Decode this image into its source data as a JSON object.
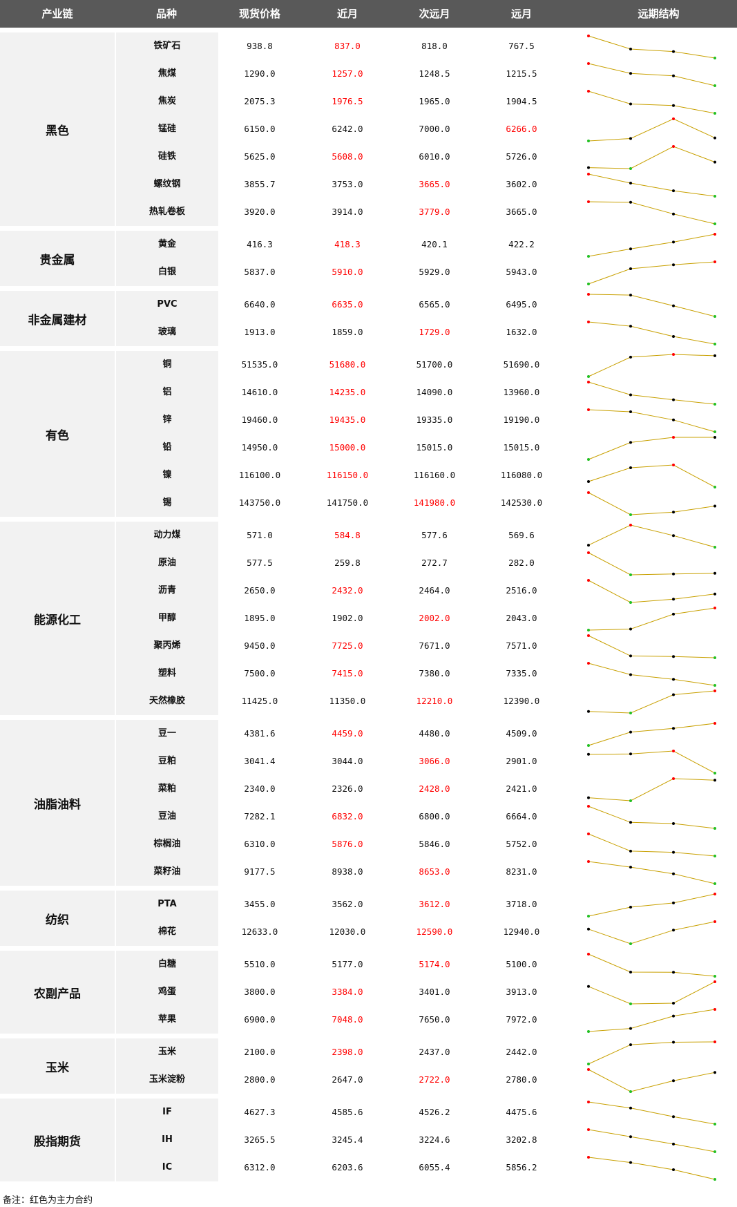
{
  "header": [
    "产业链",
    "品种",
    "现货价格",
    "近月",
    "次远月",
    "远月",
    "远期结构"
  ],
  "groups": [
    {
      "name": "黑色",
      "rows": [
        {
          "name": "铁矿石",
          "spot": "938.8",
          "near": "837.0",
          "next": "818.0",
          "far": "767.5",
          "main": 1
        },
        {
          "name": "焦煤",
          "spot": "1290.0",
          "near": "1257.0",
          "next": "1248.5",
          "far": "1215.5",
          "main": 1
        },
        {
          "name": "焦炭",
          "spot": "2075.3",
          "near": "1976.5",
          "next": "1965.0",
          "far": "1904.5",
          "main": 1
        },
        {
          "name": "锰硅",
          "spot": "6150.0",
          "near": "6242.0",
          "next": "7000.0",
          "far": "6266.0",
          "main": 3
        },
        {
          "name": "硅铁",
          "spot": "5625.0",
          "near": "5608.0",
          "next": "6010.0",
          "far": "5726.0",
          "main": 1
        },
        {
          "name": "螺纹钢",
          "spot": "3855.7",
          "near": "3753.0",
          "next": "3665.0",
          "far": "3602.0",
          "main": 2
        },
        {
          "name": "热轧卷板",
          "spot": "3920.0",
          "near": "3914.0",
          "next": "3779.0",
          "far": "3665.0",
          "main": 2
        }
      ]
    },
    {
      "name": "贵金属",
      "rows": [
        {
          "name": "黄金",
          "spot": "416.3",
          "near": "418.3",
          "next": "420.1",
          "far": "422.2",
          "main": 1
        },
        {
          "name": "白银",
          "spot": "5837.0",
          "near": "5910.0",
          "next": "5929.0",
          "far": "5943.0",
          "main": 1
        }
      ]
    },
    {
      "name": "非金属建材",
      "rows": [
        {
          "name": "PVC",
          "spot": "6640.0",
          "near": "6635.0",
          "next": "6565.0",
          "far": "6495.0",
          "main": 1
        },
        {
          "name": "玻璃",
          "spot": "1913.0",
          "near": "1859.0",
          "next": "1729.0",
          "far": "1632.0",
          "main": 2
        }
      ]
    },
    {
      "name": "有色",
      "rows": [
        {
          "name": "铜",
          "spot": "51535.0",
          "near": "51680.0",
          "next": "51700.0",
          "far": "51690.0",
          "main": 1
        },
        {
          "name": "铝",
          "spot": "14610.0",
          "near": "14235.0",
          "next": "14090.0",
          "far": "13960.0",
          "main": 1
        },
        {
          "name": "锌",
          "spot": "19460.0",
          "near": "19435.0",
          "next": "19335.0",
          "far": "19190.0",
          "main": 1
        },
        {
          "name": "铅",
          "spot": "14950.0",
          "near": "15000.0",
          "next": "15015.0",
          "far": "15015.0",
          "main": 1
        },
        {
          "name": "镍",
          "spot": "116100.0",
          "near": "116150.0",
          "next": "116160.0",
          "far": "116080.0",
          "main": 1
        },
        {
          "name": "锡",
          "spot": "143750.0",
          "near": "141750.0",
          "next": "141980.0",
          "far": "142530.0",
          "main": 2
        }
      ]
    },
    {
      "name": "能源化工",
      "rows": [
        {
          "name": "动力煤",
          "spot": "571.0",
          "near": "584.8",
          "next": "577.6",
          "far": "569.6",
          "main": 1
        },
        {
          "name": "原油",
          "spot": "577.5",
          "near": "259.8",
          "next": "272.7",
          "far": "282.0",
          "main": 0
        },
        {
          "name": "沥青",
          "spot": "2650.0",
          "near": "2432.0",
          "next": "2464.0",
          "far": "2516.0",
          "main": 1
        },
        {
          "name": "甲醇",
          "spot": "1895.0",
          "near": "1902.0",
          "next": "2002.0",
          "far": "2043.0",
          "main": 2
        },
        {
          "name": "聚丙烯",
          "spot": "9450.0",
          "near": "7725.0",
          "next": "7671.0",
          "far": "7571.0",
          "main": 1
        },
        {
          "name": "塑料",
          "spot": "7500.0",
          "near": "7415.0",
          "next": "7380.0",
          "far": "7335.0",
          "main": 1
        },
        {
          "name": "天然橡胶",
          "spot": "11425.0",
          "near": "11350.0",
          "next": "12210.0",
          "far": "12390.0",
          "main": 2
        }
      ]
    },
    {
      "name": "油脂油料",
      "rows": [
        {
          "name": "豆一",
          "spot": "4381.6",
          "near": "4459.0",
          "next": "4480.0",
          "far": "4509.0",
          "main": 1
        },
        {
          "name": "豆粕",
          "spot": "3041.4",
          "near": "3044.0",
          "next": "3066.0",
          "far": "2901.0",
          "main": 2
        },
        {
          "name": "菜粕",
          "spot": "2340.0",
          "near": "2326.0",
          "next": "2428.0",
          "far": "2421.0",
          "main": 2
        },
        {
          "name": "豆油",
          "spot": "7282.1",
          "near": "6832.0",
          "next": "6800.0",
          "far": "6664.0",
          "main": 1
        },
        {
          "name": "棕榈油",
          "spot": "6310.0",
          "near": "5876.0",
          "next": "5846.0",
          "far": "5752.0",
          "main": 1
        },
        {
          "name": "菜籽油",
          "spot": "9177.5",
          "near": "8938.0",
          "next": "8653.0",
          "far": "8231.0",
          "main": 2
        }
      ]
    },
    {
      "name": "纺织",
      "rows": [
        {
          "name": "PTA",
          "spot": "3455.0",
          "near": "3562.0",
          "next": "3612.0",
          "far": "3718.0",
          "main": 2
        },
        {
          "name": "棉花",
          "spot": "12633.0",
          "near": "12030.0",
          "next": "12590.0",
          "far": "12940.0",
          "main": 2
        }
      ]
    },
    {
      "name": "农副产品",
      "rows": [
        {
          "name": "白糖",
          "spot": "5510.0",
          "near": "5177.0",
          "next": "5174.0",
          "far": "5100.0",
          "main": 2
        },
        {
          "name": "鸡蛋",
          "spot": "3800.0",
          "near": "3384.0",
          "next": "3401.0",
          "far": "3913.0",
          "main": 1
        },
        {
          "name": "苹果",
          "spot": "6900.0",
          "near": "7048.0",
          "next": "7650.0",
          "far": "7972.0",
          "main": 1
        }
      ]
    },
    {
      "name": "玉米",
      "rows": [
        {
          "name": "玉米",
          "spot": "2100.0",
          "near": "2398.0",
          "next": "2437.0",
          "far": "2442.0",
          "main": 1
        },
        {
          "name": "玉米淀粉",
          "spot": "2800.0",
          "near": "2647.0",
          "next": "2722.0",
          "far": "2780.0",
          "main": 2
        }
      ]
    },
    {
      "name": "股指期货",
      "rows": [
        {
          "name": "IF",
          "spot": "4627.3",
          "near": "4585.6",
          "next": "4526.2",
          "far": "4475.6",
          "main": 0
        },
        {
          "name": "IH",
          "spot": "3265.5",
          "near": "3245.4",
          "next": "3224.6",
          "far": "3202.8",
          "main": 0
        },
        {
          "name": "IC",
          "spot": "6312.0",
          "near": "6203.6",
          "next": "6055.4",
          "far": "5856.2",
          "main": 0
        }
      ]
    }
  ],
  "note": "备注：红色为主力合约",
  "colors": {
    "header_bg": "#595959",
    "group_bg": "#f2f2f2",
    "main_contract": "#ff0000",
    "line": "#c8a000",
    "max_dot": "#ff0000",
    "min_dot": "#22c022",
    "mid_dot": "#000000"
  }
}
